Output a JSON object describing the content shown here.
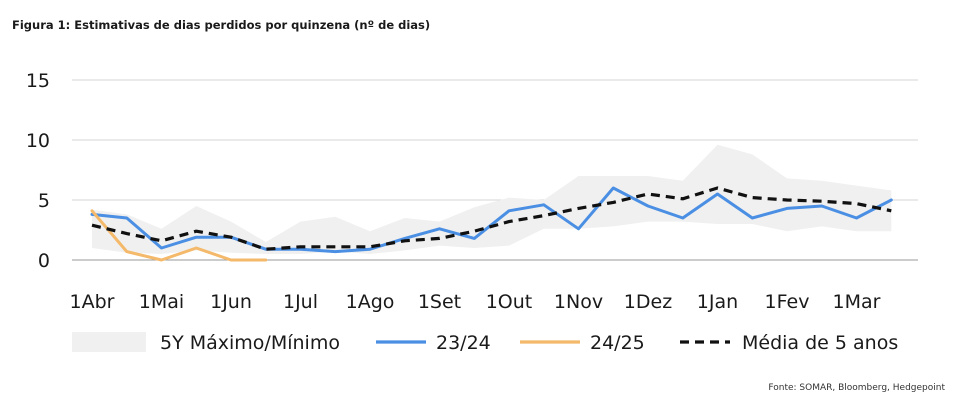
{
  "title": "Figura 1: Estimativas de dias perdidos por quinzena (nº de dias)",
  "source": "Fonte: SOMAR, Bloomberg, Hedgepoint",
  "colors": {
    "band": "#f0f0f0",
    "s2324": "#4a8fe3",
    "s2425": "#f4b96a",
    "avg": "#111111",
    "grid": "#d6d6d6"
  },
  "chart_data": {
    "type": "line",
    "ylim": [
      0,
      15
    ],
    "yticks": [
      "0",
      "5",
      "10",
      "15"
    ],
    "categories": [
      "1Abr",
      "1Mai",
      "1Jun",
      "1Jul",
      "1Ago",
      "1Set",
      "1Out",
      "1Nov",
      "1Dez",
      "1Jan",
      "1Fev",
      "1Mar"
    ],
    "legend": [
      {
        "key": "band",
        "label": "5Y Máximo/Mínimo",
        "style": "band"
      },
      {
        "key": "s2324",
        "label": "23/24",
        "style": "line"
      },
      {
        "key": "s2425",
        "label": "24/25",
        "style": "line"
      },
      {
        "key": "avg",
        "label": "Média de 5 anos",
        "style": "dashed"
      }
    ],
    "band": {
      "x": [
        0,
        0.5,
        1,
        1.5,
        2,
        2.5,
        3,
        3.5,
        4,
        4.5,
        5,
        5.5,
        6,
        6.5,
        7,
        7.5,
        8,
        8.5,
        9,
        9.5,
        10,
        10.5,
        11,
        11.5
      ],
      "max": [
        4.2,
        3.8,
        2.6,
        4.5,
        3.2,
        1.5,
        3.2,
        3.6,
        2.4,
        3.5,
        3.2,
        4.4,
        5.2,
        5.0,
        7.0,
        7.0,
        7.0,
        6.6,
        9.6,
        8.8,
        6.8,
        6.6,
        6.2,
        5.8
      ],
      "min": [
        1.0,
        0.6,
        0.5,
        0.8,
        0.6,
        0.5,
        0.5,
        0.7,
        0.5,
        0.8,
        1.2,
        1.0,
        1.2,
        2.6,
        2.6,
        2.8,
        3.2,
        3.2,
        3.0,
        3.0,
        2.4,
        2.8,
        2.4,
        2.4
      ]
    },
    "series": [
      {
        "key": "s2324",
        "name": "23/24",
        "x": [
          0,
          0.5,
          1,
          1.5,
          2,
          2.5,
          3,
          3.5,
          4,
          4.5,
          5,
          5.5,
          6,
          6.5,
          7,
          7.5,
          8,
          8.5,
          9,
          9.5,
          10,
          10.5,
          11,
          11.5
        ],
        "y": [
          3.8,
          3.5,
          1.0,
          1.9,
          1.9,
          0.9,
          0.9,
          0.7,
          0.9,
          1.8,
          2.6,
          1.8,
          4.1,
          4.6,
          2.6,
          6.0,
          4.5,
          3.5,
          5.5,
          3.5,
          4.3,
          4.5,
          3.5,
          5.0
        ]
      },
      {
        "key": "s2425",
        "name": "24/25",
        "x": [
          0,
          0.5,
          1,
          1.5,
          2,
          2.5
        ],
        "y": [
          4.1,
          0.7,
          0.0,
          1.0,
          0.0,
          0.0
        ]
      },
      {
        "key": "avg",
        "name": "Média de 5 anos",
        "x": [
          0,
          0.5,
          1,
          1.5,
          2,
          2.5,
          3,
          3.5,
          4,
          4.5,
          5,
          5.5,
          6,
          6.5,
          7,
          7.5,
          8,
          8.5,
          9,
          9.5,
          10,
          10.5,
          11,
          11.5
        ],
        "y": [
          2.9,
          2.2,
          1.6,
          2.4,
          1.9,
          0.9,
          1.1,
          1.1,
          1.1,
          1.6,
          1.8,
          2.4,
          3.2,
          3.7,
          4.3,
          4.8,
          5.5,
          5.1,
          6.0,
          5.2,
          5.0,
          4.9,
          4.7,
          4.1
        ]
      }
    ]
  }
}
